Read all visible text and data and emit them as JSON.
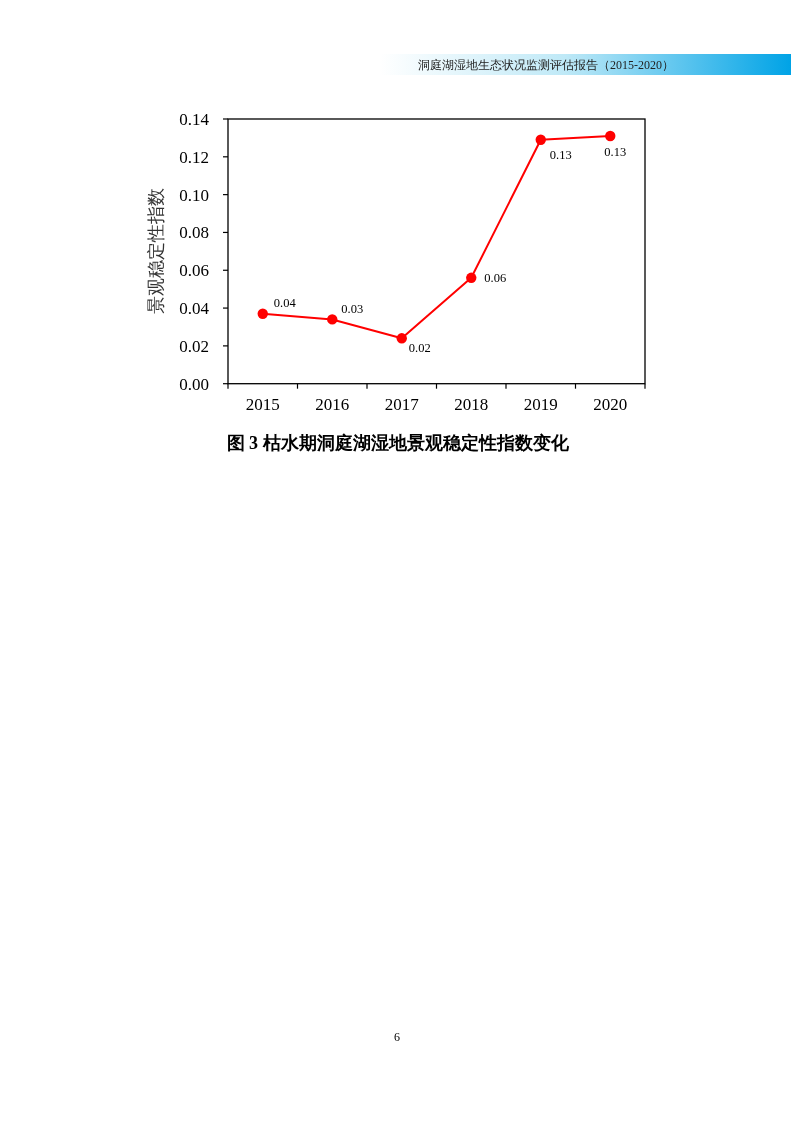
{
  "chart_data": {
    "type": "line",
    "title": "图 3 枯水期洞庭湖湿地景观稳定性指数变化",
    "ylabel": "景观稳定性指数",
    "categories": [
      "2015",
      "2016",
      "2017",
      "2018",
      "2019",
      "2020"
    ],
    "series": [
      {
        "color": "#ff0000",
        "values": [
          0.037,
          0.034,
          0.024,
          0.056,
          0.129,
          0.131
        ],
        "value_labels": [
          "0.04",
          "0.03",
          "0.02",
          "0.06",
          "0.13",
          "0.13"
        ]
      }
    ],
    "ylim": [
      0,
      0.14
    ],
    "yticks": [
      {
        "value": 0,
        "label": "0.00"
      },
      {
        "value": 0.02,
        "label": "0.02"
      },
      {
        "value": 0.04,
        "label": "0.04"
      },
      {
        "value": 0.06,
        "label": "0.06"
      },
      {
        "value": 0.08,
        "label": "0.08"
      },
      {
        "value": 0.1,
        "label": "0.10"
      },
      {
        "value": 0.12,
        "label": "0.12"
      },
      {
        "value": 0.14,
        "label": "0.14"
      }
    ],
    "marker": "circle",
    "line_style": "solid",
    "annotations": [
      "洞庭湖湿地生态状况监测评估报告（2015-2020）",
      "6"
    ]
  }
}
